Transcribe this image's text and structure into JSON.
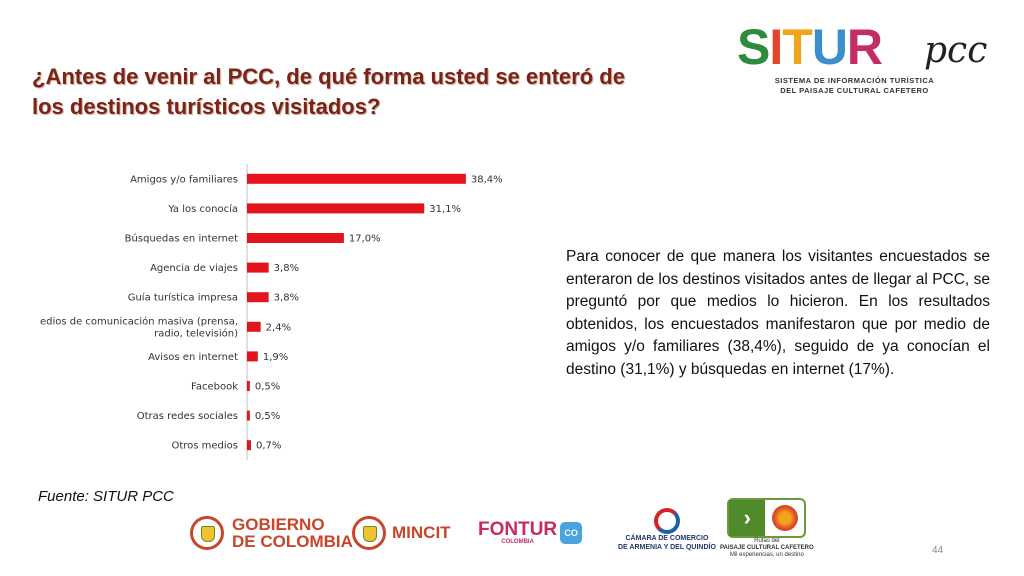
{
  "title": "¿Antes de venir al PCC, de qué forma usted se enteró de los destinos turísticos visitados?",
  "logo": {
    "word_parts": [
      "S",
      "I",
      "T",
      "U",
      "R"
    ],
    "suffix": "pcc",
    "subtitle_1": "SISTEMA DE INFORMACIÓN TURÍSTICA",
    "subtitle_2": "DEL PAISAJE CULTURAL CAFETERO"
  },
  "chart_data": {
    "type": "bar",
    "orientation": "horizontal",
    "categories": [
      "Amigos y/o familiares",
      "Ya los conocía",
      "Búsquedas en internet",
      "Agencia de viajes",
      "Guía turística impresa",
      "Medios de comunicación masiva (prensa, radio, televisión)",
      "Avisos en internet",
      "Facebook",
      "Otras redes sociales",
      "Otros medios"
    ],
    "values": [
      38.4,
      31.1,
      17.0,
      3.8,
      3.8,
      2.4,
      1.9,
      0.5,
      0.5,
      0.7
    ],
    "value_labels": [
      "38,4%",
      "31,1%",
      "17,0%",
      "3,8%",
      "3,8%",
      "2,4%",
      "1,9%",
      "0,5%",
      "0,5%",
      "0,7%"
    ],
    "xlim": [
      0,
      40
    ],
    "bar_color": "#e3141b",
    "grid": false,
    "legend": "none"
  },
  "description": "Para conocer de que manera los visitantes encuestados se enteraron de los destinos visitados antes de llegar al PCC, se preguntó por que medios lo hicieron. En los resultados obtenidos, los encuestados manifestaron que por medio de amigos y/o familiares (38,4%), seguido de ya conocían el destino (31,1%) y búsquedas en internet (17%).",
  "source": "Fuente: SITUR PCC",
  "page_number": "44",
  "footer": {
    "gobierno_line1": "GOBIERNO",
    "gobierno_line2": "DE COLOMBIA",
    "mincit": "MINCIT",
    "fontur": "FONTUR",
    "fontur_sub": "COLOMBIA",
    "fontur_badge": "CO",
    "camara_line1": "CÁMARA DE COMERCIO",
    "camara_line2": "DE ARMENIA Y DEL QUINDÍO",
    "rutas_line1": "Rutas del",
    "rutas_line2": "PAISAJE CULTURAL CAFETERO",
    "rutas_line3": "Mil experiencias, un destino"
  }
}
